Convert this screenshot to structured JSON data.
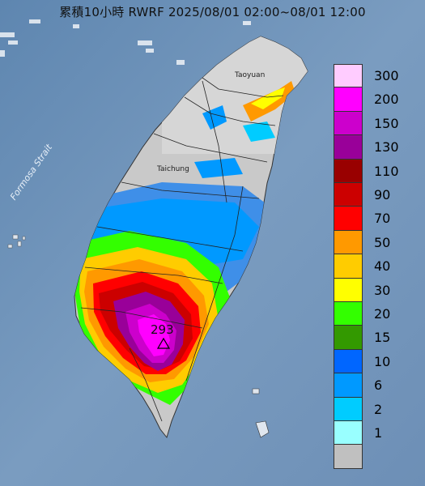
{
  "title": "累積10小時 RWRF 2025/08/01 02:00~08/01 12:00",
  "sea_label": "Formosa Strait",
  "cities": {
    "taoyuan": "Taoyuan",
    "taichung": "Taichung"
  },
  "max_marker": {
    "value": "293",
    "symbol": "△"
  },
  "legend": {
    "levels": [
      {
        "label": "300",
        "color": "#ffccff"
      },
      {
        "label": "200",
        "color": "#ff00ff"
      },
      {
        "label": "150",
        "color": "#cc00cc"
      },
      {
        "label": "130",
        "color": "#990099"
      },
      {
        "label": "110",
        "color": "#990000"
      },
      {
        "label": "90",
        "color": "#cc0000"
      },
      {
        "label": "70",
        "color": "#ff0000"
      },
      {
        "label": "50",
        "color": "#ff9900"
      },
      {
        "label": "40",
        "color": "#ffcc00"
      },
      {
        "label": "30",
        "color": "#ffff00"
      },
      {
        "label": "20",
        "color": "#33ff00"
      },
      {
        "label": "15",
        "color": "#339900"
      },
      {
        "label": "10",
        "color": "#0066ff"
      },
      {
        "label": "6",
        "color": "#0099ff"
      },
      {
        "label": "2",
        "color": "#00ccff"
      },
      {
        "label": "1",
        "color": "#99ffff"
      },
      {
        "label": "",
        "color": "#c0c0c0"
      }
    ]
  }
}
